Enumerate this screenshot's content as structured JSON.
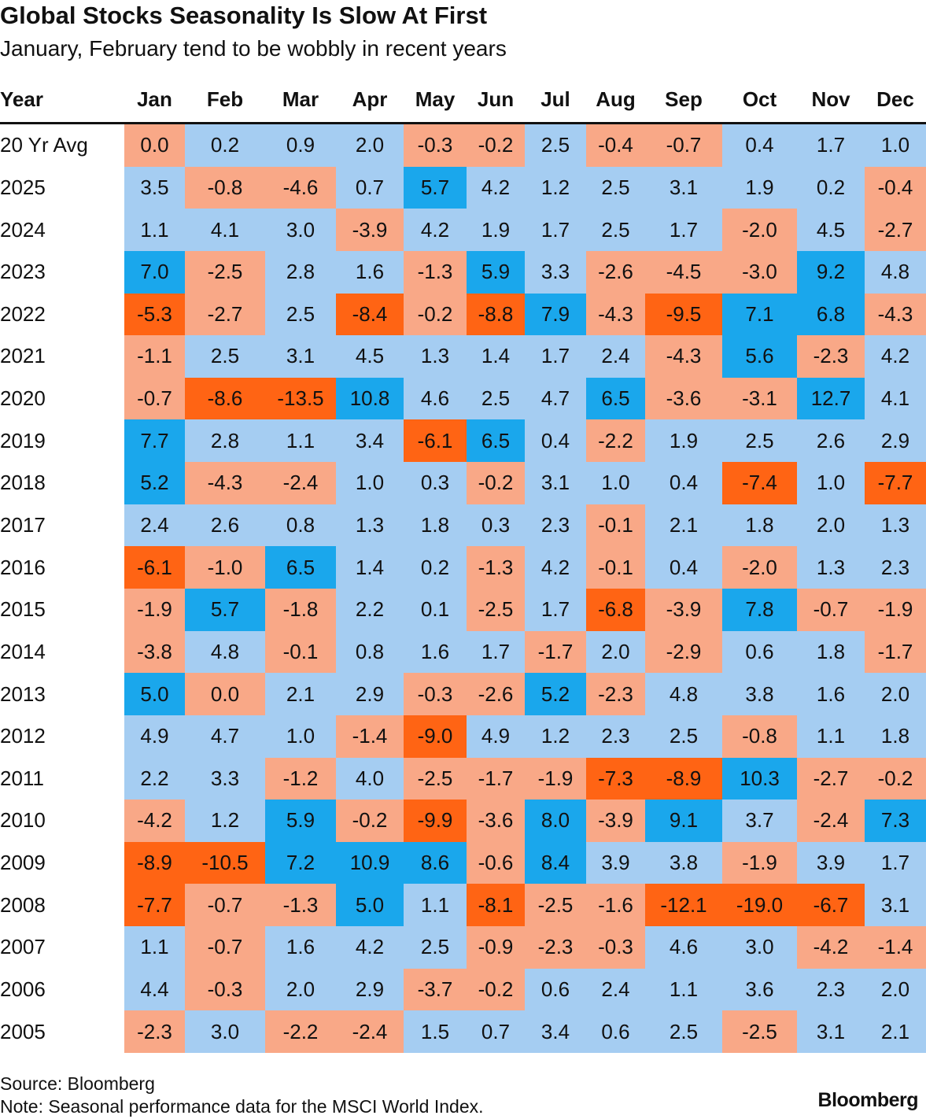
{
  "title": "Global Stocks Seasonality Is Slow At First",
  "subtitle": "January, February tend to be wobbly in recent years",
  "colors": [
    "#ff6414",
    "#f9a887",
    "#a5cdf2",
    "#1aa7ec"
  ],
  "table": {
    "columns": [
      "Year",
      "Jan",
      "Feb",
      "Mar",
      "Apr",
      "May",
      "Jun",
      "Jul",
      "Aug",
      "Sep",
      "Oct",
      "Nov",
      "Dec"
    ],
    "rows": [
      [
        "20 Yr Avg",
        "0.0",
        "0.2",
        "0.9",
        "2.0",
        "-0.3",
        "-0.2",
        "2.5",
        "-0.4",
        "-0.7",
        "0.4",
        "1.7",
        "1.0"
      ],
      [
        "2025",
        "3.5",
        "-0.8",
        "-4.6",
        "0.7",
        "5.7",
        "4.2",
        "1.2",
        "2.5",
        "3.1",
        "1.9",
        "0.2",
        "-0.4"
      ],
      [
        "2024",
        "1.1",
        "4.1",
        "3.0",
        "-3.9",
        "4.2",
        "1.9",
        "1.7",
        "2.5",
        "1.7",
        "-2.0",
        "4.5",
        "-2.7"
      ],
      [
        "2023",
        "7.0",
        "-2.5",
        "2.8",
        "1.6",
        "-1.3",
        "5.9",
        "3.3",
        "-2.6",
        "-4.5",
        "-3.0",
        "9.2",
        "4.8"
      ],
      [
        "2022",
        "-5.3",
        "-2.7",
        "2.5",
        "-8.4",
        "-0.2",
        "-8.8",
        "7.9",
        "-4.3",
        "-9.5",
        "7.1",
        "6.8",
        "-4.3"
      ],
      [
        "2021",
        "-1.1",
        "2.5",
        "3.1",
        "4.5",
        "1.3",
        "1.4",
        "1.7",
        "2.4",
        "-4.3",
        "5.6",
        "-2.3",
        "4.2"
      ],
      [
        "2020",
        "-0.7",
        "-8.6",
        "-13.5",
        "10.8",
        "4.6",
        "2.5",
        "4.7",
        "6.5",
        "-3.6",
        "-3.1",
        "12.7",
        "4.1"
      ],
      [
        "2019",
        "7.7",
        "2.8",
        "1.1",
        "3.4",
        "-6.1",
        "6.5",
        "0.4",
        "-2.2",
        "1.9",
        "2.5",
        "2.6",
        "2.9"
      ],
      [
        "2018",
        "5.2",
        "-4.3",
        "-2.4",
        "1.0",
        "0.3",
        "-0.2",
        "3.1",
        "1.0",
        "0.4",
        "-7.4",
        "1.0",
        "-7.7"
      ],
      [
        "2017",
        "2.4",
        "2.6",
        "0.8",
        "1.3",
        "1.8",
        "0.3",
        "2.3",
        "-0.1",
        "2.1",
        "1.8",
        "2.0",
        "1.3"
      ],
      [
        "2016",
        "-6.1",
        "-1.0",
        "6.5",
        "1.4",
        "0.2",
        "-1.3",
        "4.2",
        "-0.1",
        "0.4",
        "-2.0",
        "1.3",
        "2.3"
      ],
      [
        "2015",
        "-1.9",
        "5.7",
        "-1.8",
        "2.2",
        "0.1",
        "-2.5",
        "1.7",
        "-6.8",
        "-3.9",
        "7.8",
        "-0.7",
        "-1.9"
      ],
      [
        "2014",
        "-3.8",
        "4.8",
        "-0.1",
        "0.8",
        "1.6",
        "1.7",
        "-1.7",
        "2.0",
        "-2.9",
        "0.6",
        "1.8",
        "-1.7"
      ],
      [
        "2013",
        "5.0",
        "0.0",
        "2.1",
        "2.9",
        "-0.3",
        "-2.6",
        "5.2",
        "-2.3",
        "4.8",
        "3.8",
        "1.6",
        "2.0"
      ],
      [
        "2012",
        "4.9",
        "4.7",
        "1.0",
        "-1.4",
        "-9.0",
        "4.9",
        "1.2",
        "2.3",
        "2.5",
        "-0.8",
        "1.1",
        "1.8"
      ],
      [
        "2011",
        "2.2",
        "3.3",
        "-1.2",
        "4.0",
        "-2.5",
        "-1.7",
        "-1.9",
        "-7.3",
        "-8.9",
        "10.3",
        "-2.7",
        "-0.2"
      ],
      [
        "2010",
        "-4.2",
        "1.2",
        "5.9",
        "-0.2",
        "-9.9",
        "-3.6",
        "8.0",
        "-3.9",
        "9.1",
        "3.7",
        "-2.4",
        "7.3"
      ],
      [
        "2009",
        "-8.9",
        "-10.5",
        "7.2",
        "10.9",
        "8.6",
        "-0.6",
        "8.4",
        "3.9",
        "3.8",
        "-1.9",
        "3.9",
        "1.7"
      ],
      [
        "2008",
        "-7.7",
        "-0.7",
        "-1.3",
        "5.0",
        "1.1",
        "-8.1",
        "-2.5",
        "-1.6",
        "-12.1",
        "-19.0",
        "-6.7",
        "3.1"
      ],
      [
        "2007",
        "1.1",
        "-0.7",
        "1.6",
        "4.2",
        "2.5",
        "-0.9",
        "-2.3",
        "-0.3",
        "4.6",
        "3.0",
        "-4.2",
        "-1.4"
      ],
      [
        "2006",
        "4.4",
        "-0.3",
        "2.0",
        "2.9",
        "-3.7",
        "-0.2",
        "0.6",
        "2.4",
        "1.1",
        "3.6",
        "2.3",
        "2.0"
      ],
      [
        "2005",
        "-2.3",
        "3.0",
        "-2.2",
        "-2.4",
        "1.5",
        "0.7",
        "3.4",
        "0.6",
        "2.5",
        "-2.5",
        "3.1",
        "2.1"
      ]
    ]
  },
  "footer": {
    "source": "Source: Bloomberg",
    "note": "Note: Seasonal performance data for the MSCI World Index.",
    "brand": "Bloomberg"
  }
}
